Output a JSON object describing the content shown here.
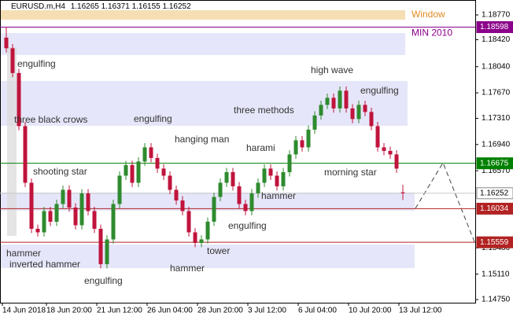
{
  "chart_data": {
    "type": "candlestick",
    "symbol": "EURUSD.m,H4",
    "ohlc": [
      1.16265,
      1.16371,
      1.16155,
      1.16252
    ],
    "categories": [
      "14 Jun 2018",
      null,
      null,
      null,
      null,
      null,
      null,
      "18 Jun 20:00",
      null,
      null,
      null,
      null,
      null,
      null,
      null,
      "21 Jun 12:00",
      null,
      null,
      null,
      null,
      null,
      null,
      null,
      "26 Jun 04:00",
      null,
      null,
      null,
      null,
      null,
      null,
      null,
      "28 Jun 20:00",
      null,
      null,
      null,
      null,
      null,
      null,
      null,
      "3 Jul 12:00",
      null,
      null,
      null,
      null,
      null,
      null,
      null,
      "6 Jul 04:00",
      null,
      null,
      null,
      null,
      null,
      null,
      null,
      "10 Jul 20:00",
      null,
      null,
      null,
      null,
      null,
      null,
      null,
      "13 Jul 12:00"
    ],
    "open": [
      1.1845,
      1.183,
      1.1795,
      1.172,
      1.164,
      1.1575,
      1.157,
      1.16,
      1.1585,
      1.161,
      1.163,
      1.1605,
      1.158,
      1.1625,
      1.16,
      1.1575,
      1.1525,
      1.156,
      1.161,
      1.165,
      1.1665,
      1.164,
      1.167,
      1.169,
      1.1675,
      1.166,
      1.165,
      1.163,
      1.1615,
      1.16,
      1.157,
      1.1555,
      1.156,
      1.1585,
      1.162,
      1.164,
      1.1655,
      1.1635,
      1.161,
      1.16,
      1.1625,
      1.164,
      1.166,
      1.165,
      1.1635,
      1.1655,
      1.168,
      1.17,
      1.169,
      1.1715,
      1.1735,
      1.175,
      1.176,
      1.1745,
      1.177,
      1.1745,
      1.173,
      1.175,
      1.174,
      1.172,
      1.169,
      1.1685,
      1.168,
      1.16265
    ],
    "high": [
      1.186,
      1.1836,
      1.1801,
      1.1726,
      1.1646,
      1.1581,
      1.1606,
      1.1606,
      1.1616,
      1.1636,
      1.1636,
      1.1611,
      1.1631,
      1.1631,
      1.1606,
      1.1581,
      1.1566,
      1.1616,
      1.1656,
      1.1671,
      1.1671,
      1.1676,
      1.1696,
      1.1696,
      1.1681,
      1.1666,
      1.1656,
      1.1636,
      1.1621,
      1.1606,
      1.1576,
      1.1566,
      1.1591,
      1.1626,
      1.1646,
      1.1661,
      1.1661,
      1.1641,
      1.1616,
      1.1631,
      1.1646,
      1.1666,
      1.1666,
      1.1656,
      1.1661,
      1.1686,
      1.1706,
      1.1706,
      1.1721,
      1.1741,
      1.1756,
      1.1766,
      1.1766,
      1.1776,
      1.1776,
      1.1751,
      1.1756,
      1.1756,
      1.1746,
      1.1726,
      1.1696,
      1.1691,
      1.1686,
      1.16371
    ],
    "low": [
      1.1824,
      1.1789,
      1.1714,
      1.1634,
      1.1569,
      1.1564,
      1.1564,
      1.1579,
      1.1579,
      1.1604,
      1.1599,
      1.1574,
      1.1574,
      1.1594,
      1.1569,
      1.1519,
      1.1519,
      1.1554,
      1.1604,
      1.1644,
      1.1634,
      1.1634,
      1.1664,
      1.1669,
      1.1654,
      1.1644,
      1.1624,
      1.1609,
      1.1594,
      1.1564,
      1.1549,
      1.1549,
      1.1554,
      1.1579,
      1.1614,
      1.1634,
      1.1629,
      1.1604,
      1.1594,
      1.1594,
      1.1619,
      1.1634,
      1.1644,
      1.1629,
      1.1629,
      1.1649,
      1.1674,
      1.1684,
      1.1684,
      1.1709,
      1.1729,
      1.1744,
      1.1739,
      1.1739,
      1.1739,
      1.1724,
      1.1724,
      1.1734,
      1.1714,
      1.1684,
      1.1679,
      1.1674,
      1.1654,
      1.16155
    ],
    "close": [
      1.183,
      1.1795,
      1.172,
      1.164,
      1.1575,
      1.157,
      1.16,
      1.1585,
      1.161,
      1.163,
      1.1605,
      1.158,
      1.1625,
      1.16,
      1.1575,
      1.1525,
      1.156,
      1.161,
      1.165,
      1.1665,
      1.164,
      1.167,
      1.169,
      1.1675,
      1.166,
      1.165,
      1.163,
      1.1615,
      1.16,
      1.157,
      1.1555,
      1.156,
      1.1585,
      1.162,
      1.164,
      1.1655,
      1.1635,
      1.161,
      1.16,
      1.1625,
      1.164,
      1.166,
      1.165,
      1.1635,
      1.1655,
      1.168,
      1.17,
      1.169,
      1.1715,
      1.1735,
      1.175,
      1.176,
      1.1745,
      1.177,
      1.1745,
      1.173,
      1.175,
      1.174,
      1.172,
      1.169,
      1.1685,
      1.168,
      1.166,
      1.16252
    ],
    "up_color": "#2e8b2e",
    "down_color": "#c0143c",
    "ylim": [
      1.14706,
      1.18981
    ],
    "yticks": [
      {
        "value": 1.1877,
        "label": "1.18770"
      },
      {
        "value": 1.1842,
        "label": "1.18420"
      },
      {
        "value": 1.1804,
        "label": "1.18040"
      },
      {
        "value": 1.1767,
        "label": "1.17670"
      },
      {
        "value": 1.1731,
        "label": "1.17310"
      },
      {
        "value": 1.1694,
        "label": "1.16940"
      },
      {
        "value": 1.1657,
        "label": "1.16570"
      },
      {
        "value": 1.1548,
        "label": "1.15480"
      },
      {
        "value": 1.1511,
        "label": "1.15110"
      },
      {
        "value": 1.1475,
        "label": "1.14750"
      }
    ],
    "levels": [
      {
        "value": 1.18598,
        "color": "#8b008b",
        "label": "MIN 2010"
      },
      {
        "value": 1.16675,
        "color": "#008000"
      },
      {
        "value": 1.16252,
        "color": "#c8c8c8"
      },
      {
        "value": 1.16034,
        "color": "#b22222"
      },
      {
        "value": 1.15559,
        "color": "#b22222"
      }
    ],
    "annotations": [
      "Window",
      "engulfing",
      "three black crows",
      "shooting star",
      "hammer",
      "inverted hammer",
      "engulfing",
      "engulfing",
      "hanging man",
      "hammer",
      "tower",
      "engulfing",
      "harami",
      "three methods",
      "hammer",
      "high wave",
      "engulfing",
      "morning star"
    ]
  }
}
